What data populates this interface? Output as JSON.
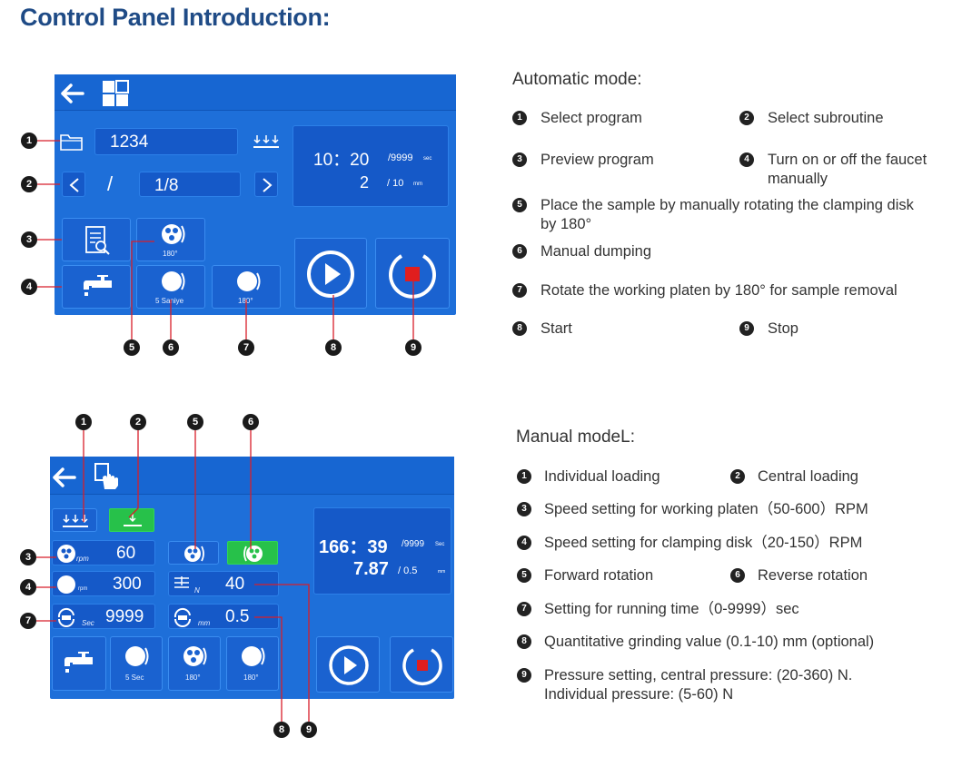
{
  "title": "Control Panel Introduction:",
  "auto_panel": {
    "program": "1234",
    "subroutine_sep": "/",
    "subroutine": "1/8",
    "time_main": "10：20",
    "time_limit": "/9999",
    "time_unit": "sec",
    "depth_main": "2",
    "depth_limit": "/ 10",
    "depth_unit": "mm",
    "rotate_label": "180°",
    "dump_label": "5 Saniye",
    "rotate_platen_label": "180°"
  },
  "manual_panel": {
    "platen_speed": "60",
    "platen_unit": "rpm",
    "disk_speed": "300",
    "disk_unit": "rpm",
    "pressure": "40",
    "pressure_unit": "N",
    "time_value": "9999",
    "time_unit": "Sec",
    "depth_value": "0.5",
    "depth_unit": "mm",
    "display_time": "166：39",
    "display_time_limit": "/9999",
    "display_time_unit": "Sec",
    "display_depth": "7.87",
    "display_depth_limit": "/  0.5",
    "display_depth_unit": "mm",
    "dump_label": "5 Sec",
    "fwd_label": "180°",
    "rev_label": "180°"
  },
  "callout_numbers": [
    "1",
    "2",
    "3",
    "4",
    "5",
    "6",
    "7",
    "8",
    "9"
  ],
  "automatic": {
    "heading": "Automatic mode:",
    "items": [
      {
        "num": "1",
        "text": "Select program"
      },
      {
        "num": "2",
        "text": "Select subroutine"
      },
      {
        "num": "3",
        "text": "Preview program"
      },
      {
        "num": "4",
        "text": "Turn on or off the faucet",
        "text2": "manually"
      },
      {
        "num": "5",
        "text": "Place the sample by manually rotating the clamping disk",
        "text2": "by 180°"
      },
      {
        "num": "6",
        "text": "Manual dumping"
      },
      {
        "num": "7",
        "text": "Rotate the working platen by 180° for sample removal"
      },
      {
        "num": "8",
        "text": "Start"
      },
      {
        "num": "9",
        "text": "Stop"
      }
    ]
  },
  "manual": {
    "heading": "Manual modeL:",
    "items": [
      {
        "num": "1",
        "text": "Individual loading"
      },
      {
        "num": "2",
        "text": "Central loading"
      },
      {
        "num": "3",
        "text": "Speed setting for working platen（50-600）RPM"
      },
      {
        "num": "4",
        "text": "Speed setting for clamping disk（20-150）RPM"
      },
      {
        "num": "5",
        "text": "Forward rotation"
      },
      {
        "num": "6",
        "text": "Reverse rotation"
      },
      {
        "num": "7",
        "text": "Setting for running time（0-9999）sec"
      },
      {
        "num": "8",
        "text": "Quantitative grinding value (0.1-10) mm (optional)"
      },
      {
        "num": "9",
        "text": "Pressure setting, central pressure: (20-360) N.",
        "text2": "Individual pressure: (5-60) N"
      }
    ]
  }
}
